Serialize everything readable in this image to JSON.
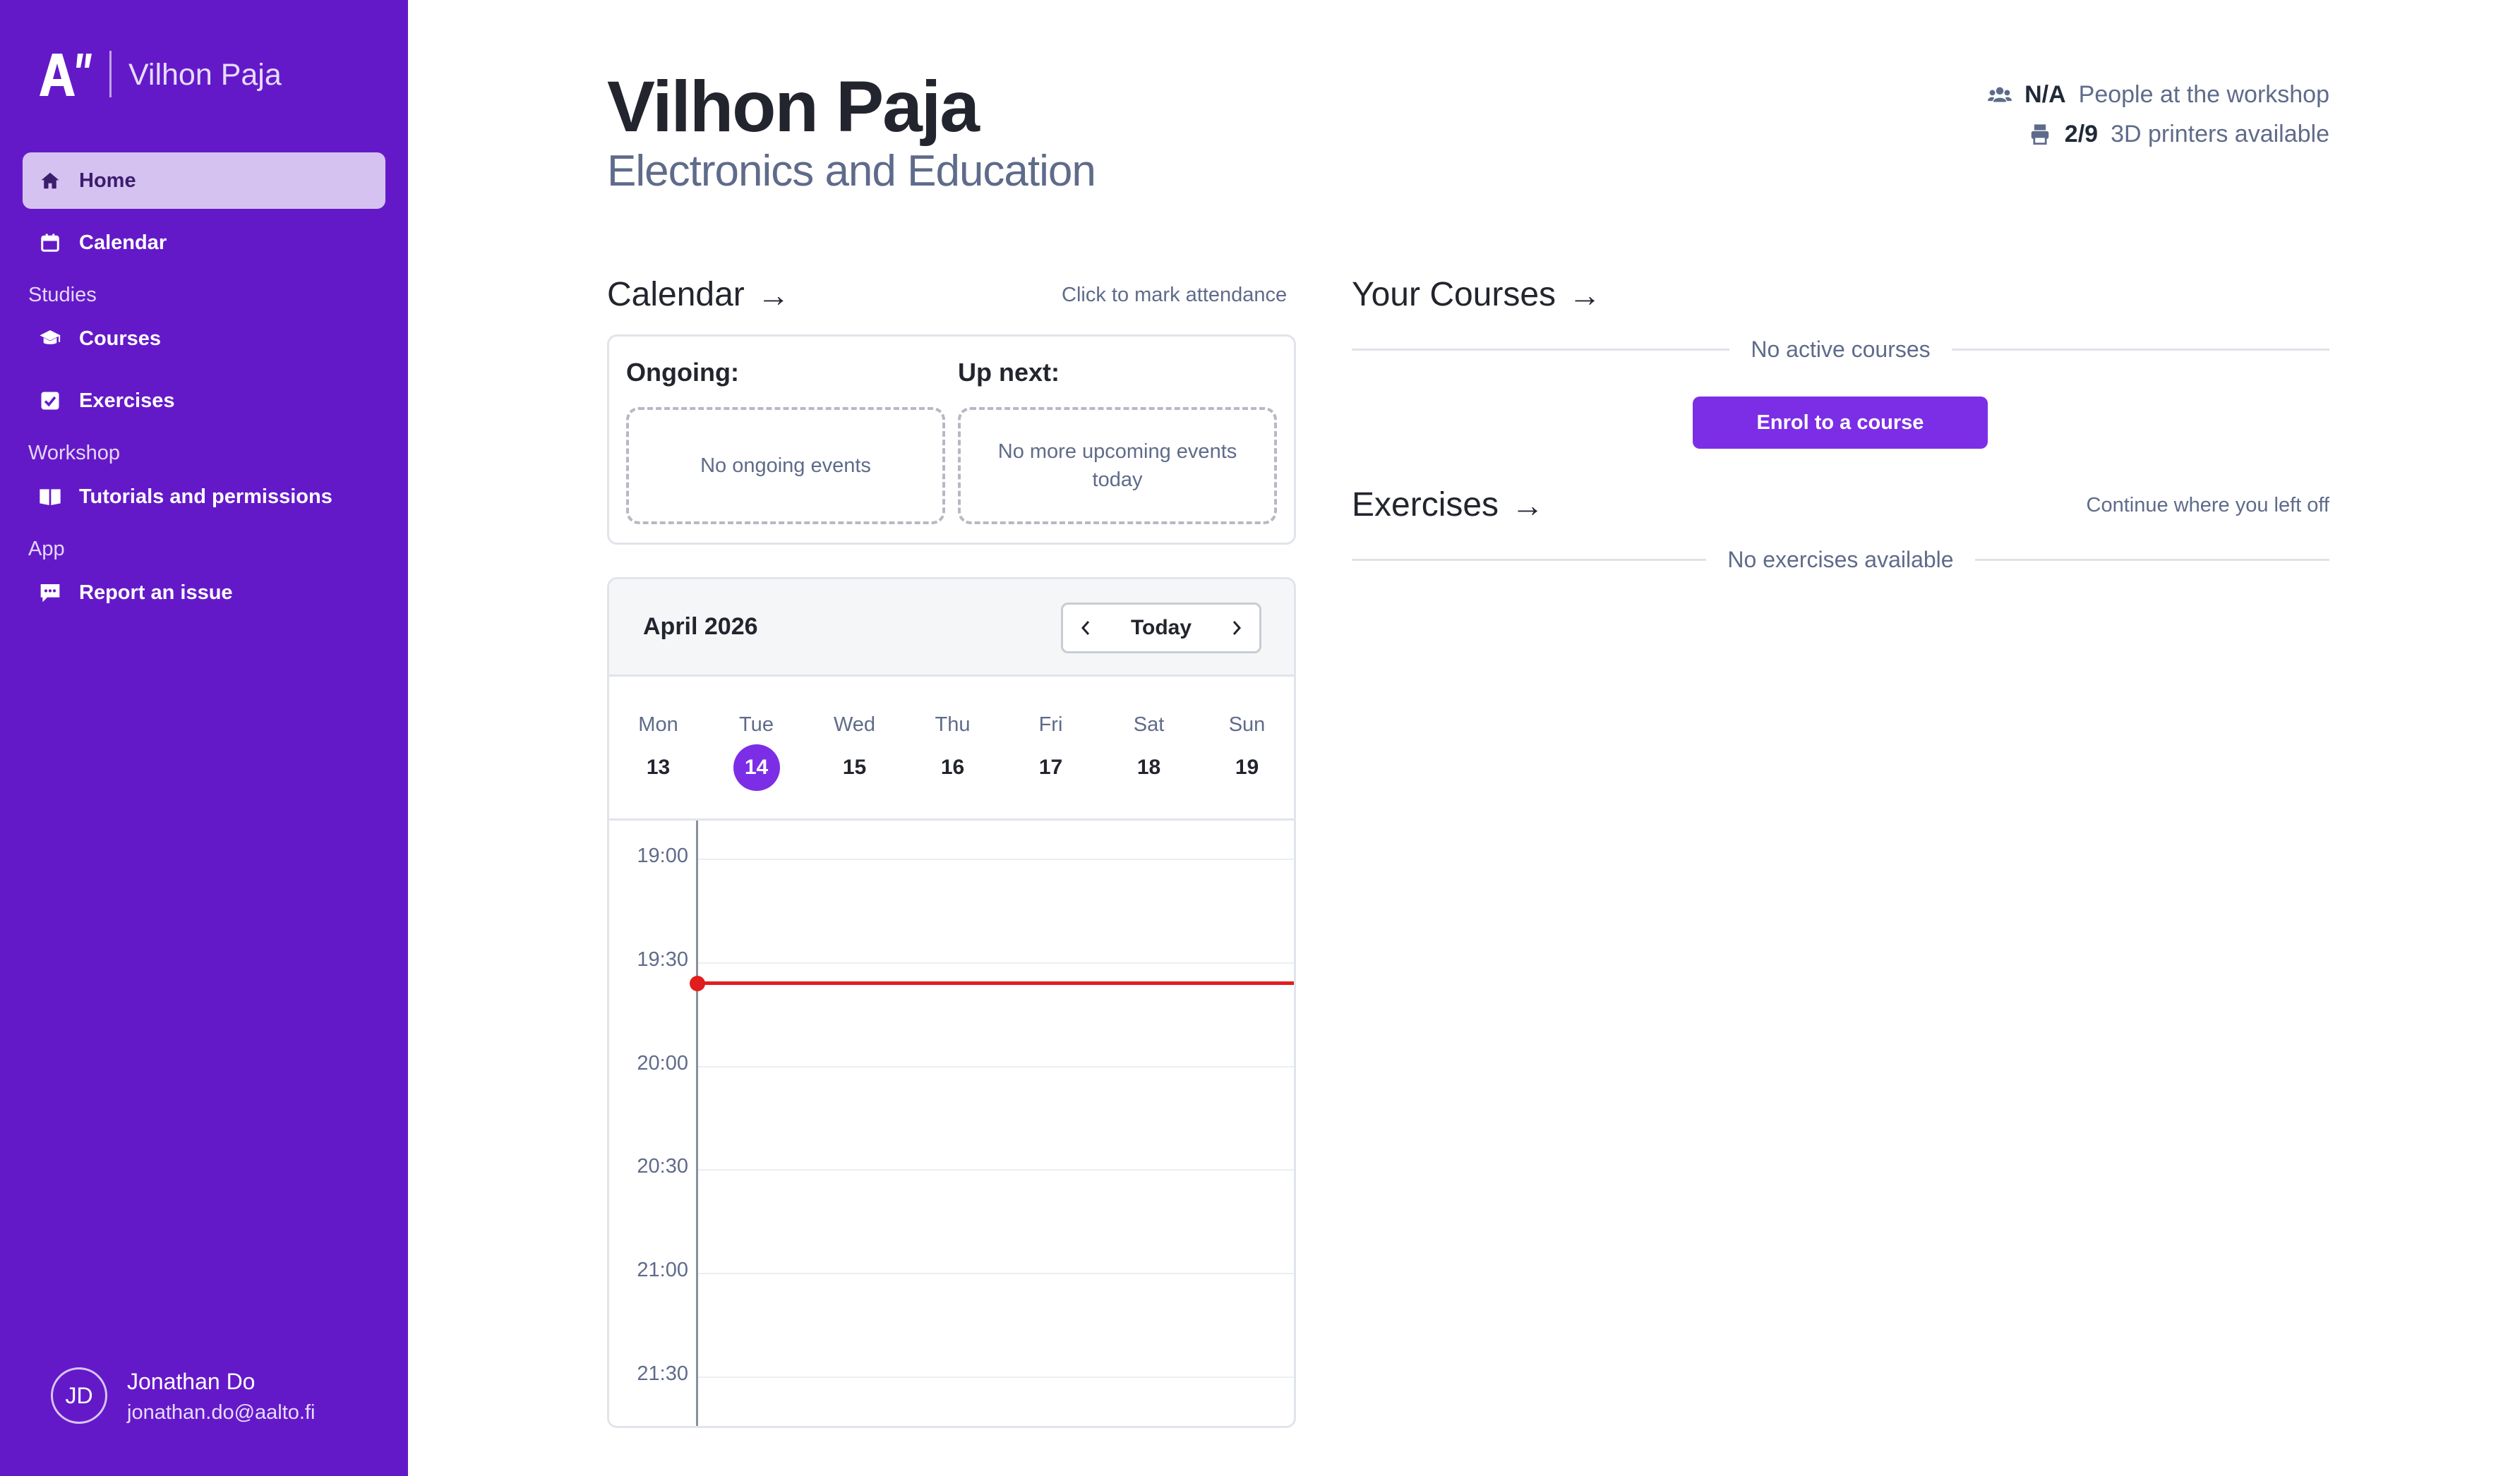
{
  "brand": {
    "title": "Vilhon Paja",
    "accent": "#6419c9"
  },
  "sidebar": {
    "items": [
      {
        "label": "Home",
        "icon": "home-icon",
        "active": true
      },
      {
        "label": "Calendar",
        "icon": "calendar-icon"
      },
      {
        "label": "Courses",
        "icon": "graduation-cap-icon"
      },
      {
        "label": "Exercises",
        "icon": "check-square-icon"
      },
      {
        "label": "Tutorials and permissions",
        "icon": "book-open-icon"
      },
      {
        "label": "Report an issue",
        "icon": "message-icon"
      }
    ],
    "sections": {
      "studies": "Studies",
      "workshop": "Workshop",
      "app": "App"
    }
  },
  "user": {
    "initials": "JD",
    "name": "Jonathan Do",
    "email": "jonathan.do@aalto.fi"
  },
  "header": {
    "title": "Vilhon Paja",
    "subtitle": "Electronics and Education",
    "people_value": "N/A",
    "people_label": "People at the workshop",
    "printers_value": "2/9",
    "printers_label": "3D printers available"
  },
  "calendar_section": {
    "title": "Calendar",
    "arrow": "→",
    "hint": "Click to mark attendance",
    "ongoing_label": "Ongoing:",
    "ongoing_empty": "No ongoing events",
    "upnext_label": "Up next:",
    "upnext_empty": "No more upcoming events today",
    "month": "April 2026",
    "today_label": "Today",
    "days": [
      {
        "name": "Mon",
        "date": "13"
      },
      {
        "name": "Tue",
        "date": "14",
        "current": true
      },
      {
        "name": "Wed",
        "date": "15"
      },
      {
        "name": "Thu",
        "date": "16"
      },
      {
        "name": "Fri",
        "date": "17"
      },
      {
        "name": "Sat",
        "date": "18"
      },
      {
        "name": "Sun",
        "date": "19"
      }
    ],
    "times": [
      "19:00",
      "19:30",
      "20:00",
      "20:30",
      "21:00",
      "21:30"
    ],
    "now_time": "19:36"
  },
  "courses_section": {
    "title": "Your Courses",
    "arrow": "→",
    "empty": "No active courses",
    "enrol_label": "Enrol to a course"
  },
  "exercises_section": {
    "title": "Exercises",
    "arrow": "→",
    "hint": "Continue where you left off",
    "empty": "No exercises available"
  }
}
